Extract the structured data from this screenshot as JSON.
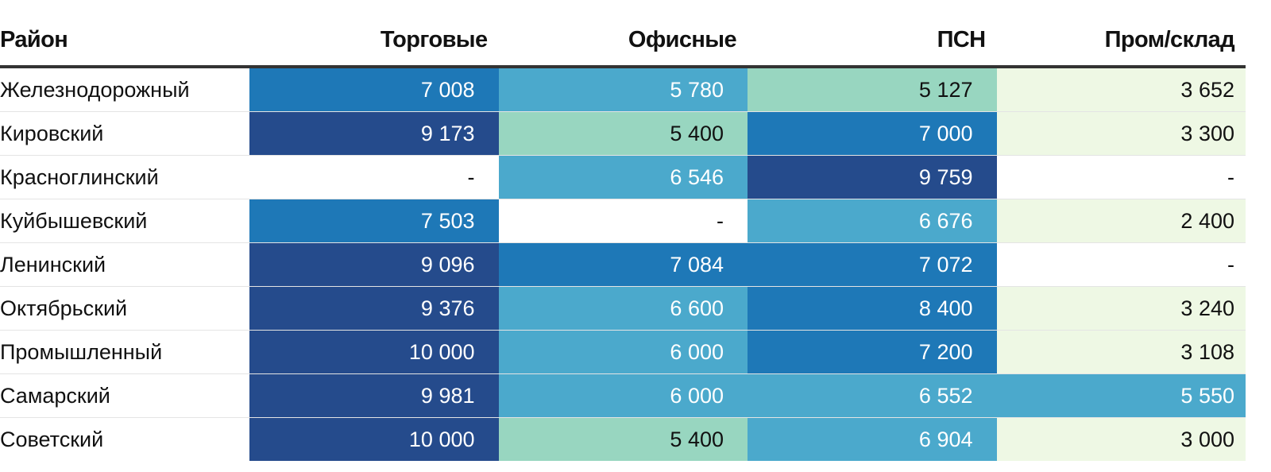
{
  "chart_data": {
    "type": "table",
    "columns": [
      "Район",
      "Торговые",
      "Офисные",
      "ПСН",
      "Пром/склад"
    ],
    "rows": [
      {
        "district": "Железнодорожный",
        "values": [
          7008,
          5780,
          5127,
          3652
        ],
        "labels": [
          "7 008",
          "5 780",
          "5 127",
          "3 652"
        ]
      },
      {
        "district": "Кировский",
        "values": [
          9173,
          5400,
          7000,
          3300
        ],
        "labels": [
          "9 173",
          "5 400",
          "7 000",
          "3 300"
        ]
      },
      {
        "district": "Красноглинский",
        "values": [
          null,
          6546,
          9759,
          null
        ],
        "labels": [
          "-",
          "6 546",
          "9 759",
          "-"
        ]
      },
      {
        "district": "Куйбышевский",
        "values": [
          7503,
          null,
          6676,
          2400
        ],
        "labels": [
          "7 503",
          "-",
          "6 676",
          "2 400"
        ]
      },
      {
        "district": "Ленинский",
        "values": [
          9096,
          7084,
          7072,
          null
        ],
        "labels": [
          "9 096",
          "7 084",
          "7 072",
          "-"
        ]
      },
      {
        "district": "Октябрьский",
        "values": [
          9376,
          6600,
          8400,
          3240
        ],
        "labels": [
          "9 376",
          "6 600",
          "8 400",
          "3 240"
        ]
      },
      {
        "district": "Промышленный",
        "values": [
          10000,
          6000,
          7200,
          3108
        ],
        "labels": [
          "10 000",
          "6 000",
          "7 200",
          "3 108"
        ]
      },
      {
        "district": "Самарский",
        "values": [
          9981,
          6000,
          6552,
          5550
        ],
        "labels": [
          "9 981",
          "6 000",
          "6 552",
          "5 550"
        ]
      },
      {
        "district": "Советский",
        "values": [
          10000,
          5400,
          6904,
          3000
        ],
        "labels": [
          "10 000",
          "5 400",
          "6 904",
          "3 000"
        ]
      }
    ],
    "color_scale": {
      "empty": "#ffffff",
      "bins": [
        {
          "min": 0,
          "bg": "#eef8e4",
          "fg": "#111111"
        },
        {
          "min": 5000,
          "bg": "#98d6c0",
          "fg": "#111111"
        },
        {
          "min": 5500,
          "bg": "#4ba9cc",
          "fg": "#ffffff"
        },
        {
          "min": 7000,
          "bg": "#1e78b7",
          "fg": "#ffffff"
        },
        {
          "min": 9000,
          "bg": "#254b8c",
          "fg": "#ffffff"
        }
      ]
    }
  }
}
